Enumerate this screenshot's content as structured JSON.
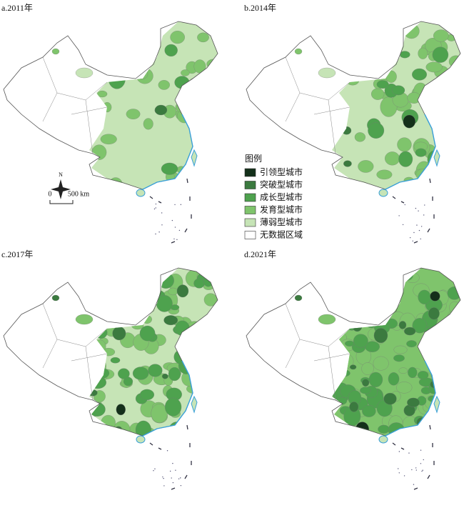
{
  "panels": [
    {
      "label": "a.2011年"
    },
    {
      "label": "b.2014年"
    },
    {
      "label": "c.2017年"
    },
    {
      "label": "d.2021年"
    }
  ],
  "legend": {
    "title": "图例",
    "items": [
      {
        "name": "引领型城市",
        "color": "#14301a"
      },
      {
        "name": "突破型城市",
        "color": "#3b7a3f"
      },
      {
        "name": "成长型城市",
        "color": "#4ea24e"
      },
      {
        "name": "发育型城市",
        "color": "#7fc46c"
      },
      {
        "name": "薄弱型城市",
        "color": "#c6e4b6"
      },
      {
        "name": "无数据区域",
        "color": "#ffffff"
      }
    ]
  },
  "scale_bar": {
    "zero": "0",
    "distance": "500 km"
  },
  "north_arrow": {
    "label": "N"
  }
}
